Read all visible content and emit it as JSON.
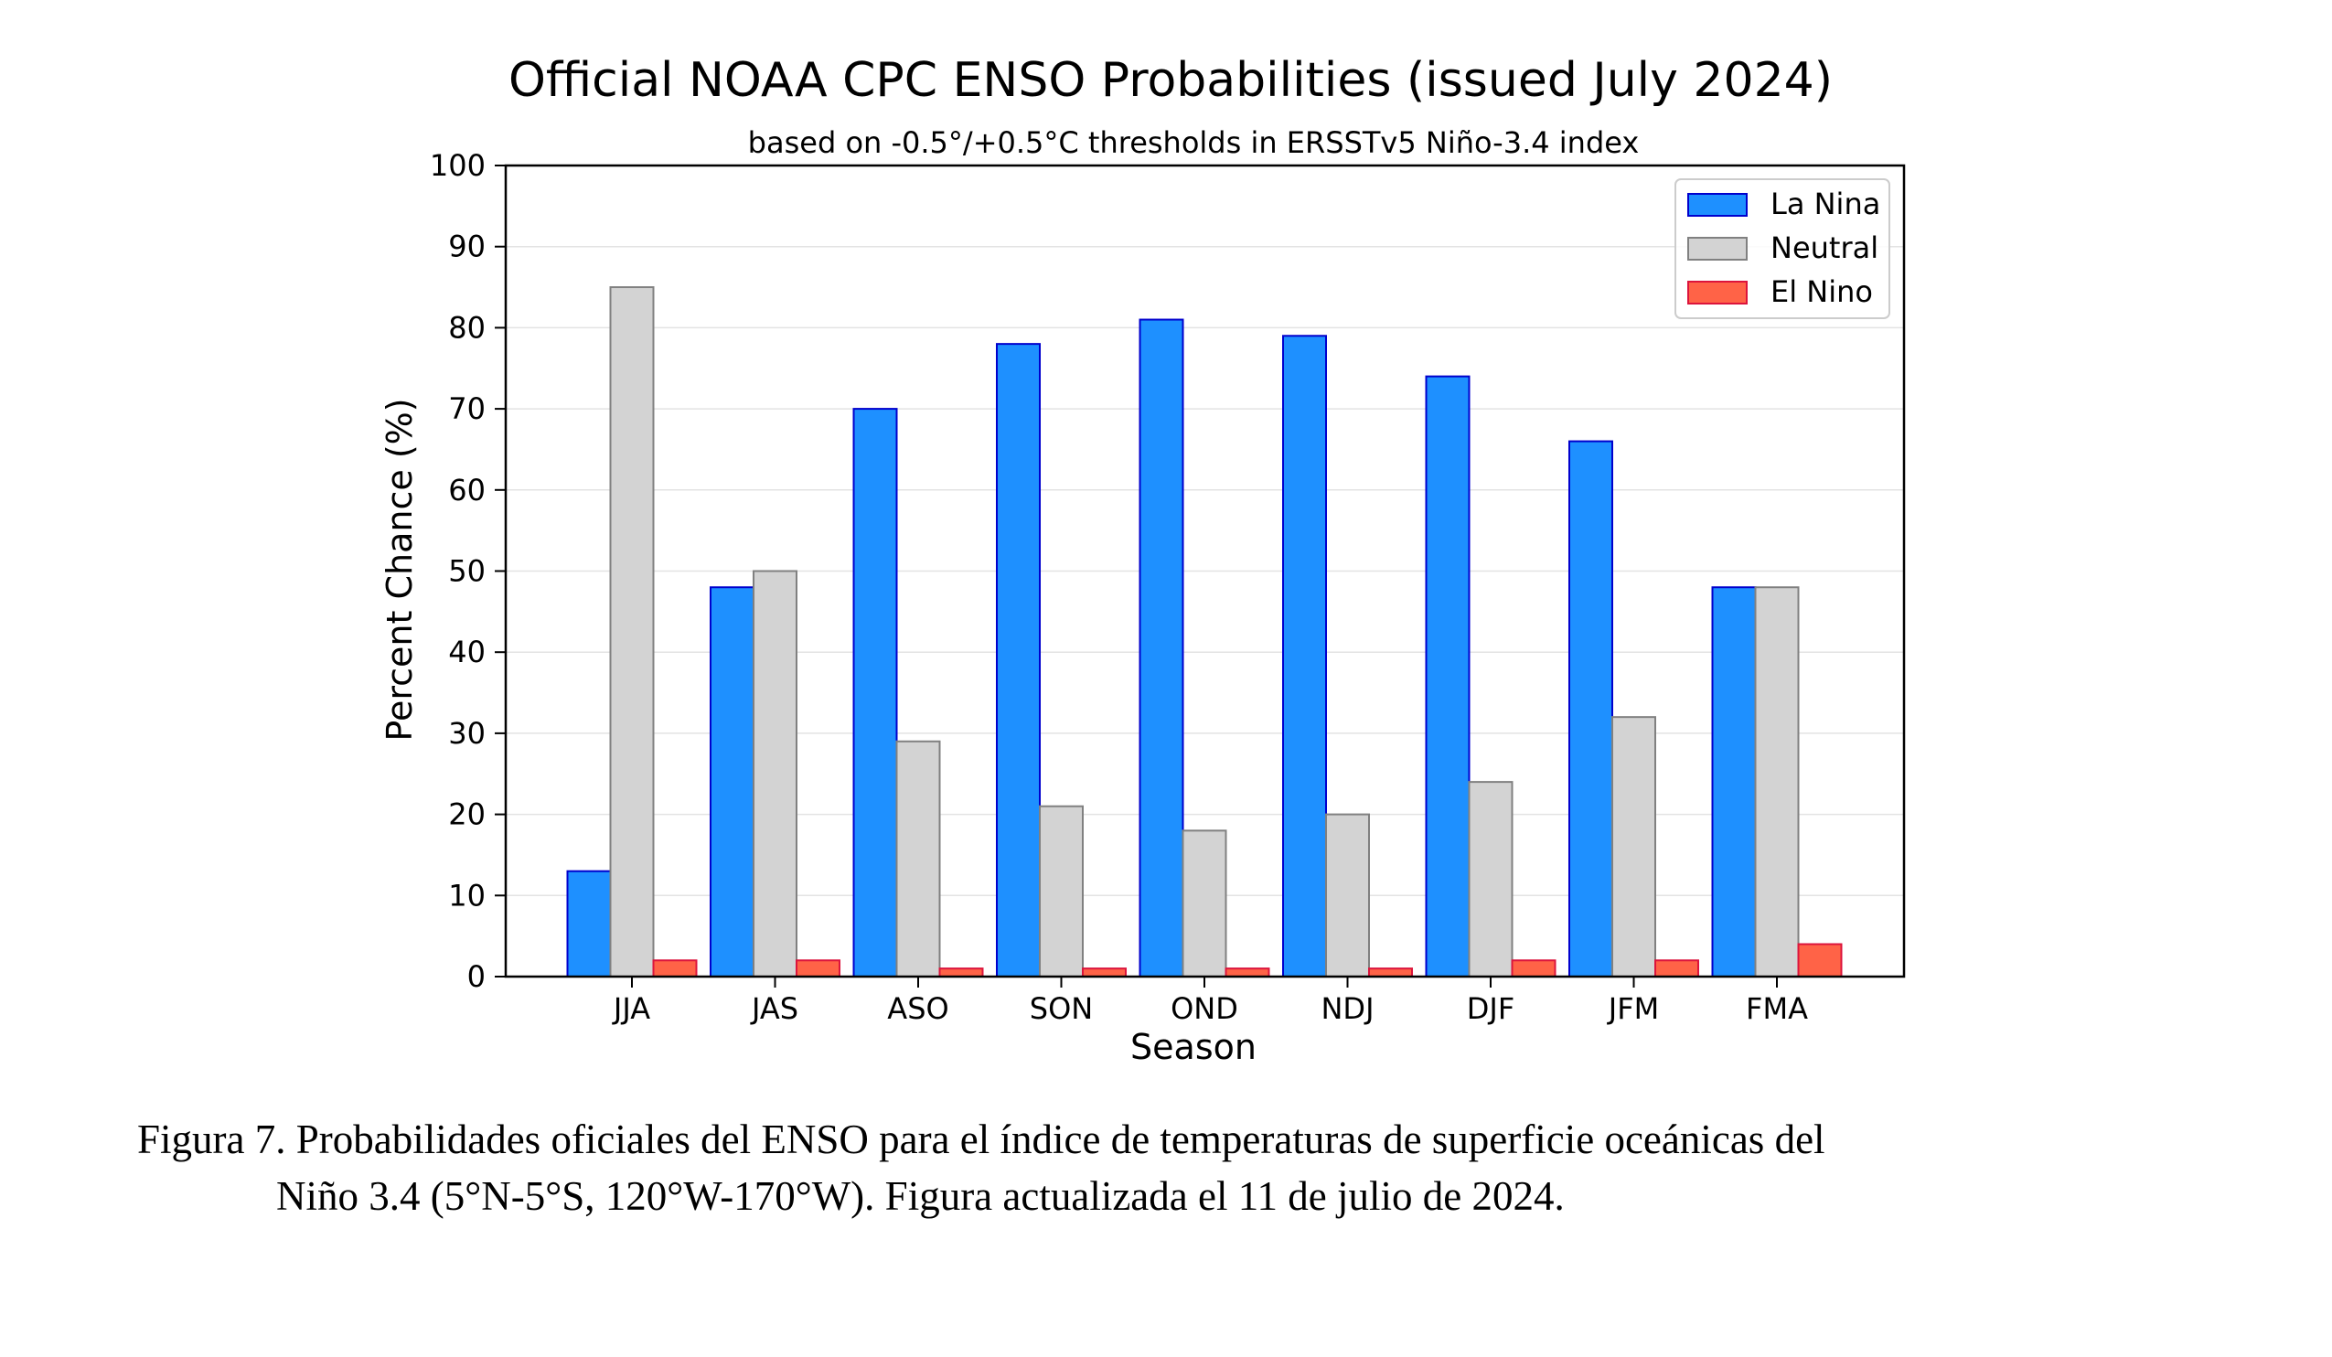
{
  "chart_data": {
    "type": "bar",
    "title": "Official NOAA CPC ENSO Probabilities (issued July 2024)",
    "subtitle": "based on -0.5°/+0.5°C thresholds in ERSSTv5 Niño-3.4 index",
    "xlabel": "Season",
    "ylabel": "Percent Chance (%)",
    "ylim": [
      0,
      100
    ],
    "yticks": [
      0,
      10,
      20,
      30,
      40,
      50,
      60,
      70,
      80,
      90,
      100
    ],
    "grid": "horizontal",
    "legend_position": "top-right",
    "categories": [
      "JJA",
      "JAS",
      "ASO",
      "SON",
      "OND",
      "NDJ",
      "DJF",
      "JFM",
      "FMA"
    ],
    "series": [
      {
        "name": "La Nina",
        "color": "#1e90ff",
        "edge": "#0000cd",
        "values": [
          13,
          48,
          70,
          78,
          81,
          79,
          74,
          66,
          48
        ]
      },
      {
        "name": "Neutral",
        "color": "#d3d3d3",
        "edge": "#808080",
        "values": [
          85,
          50,
          29,
          21,
          18,
          20,
          24,
          32,
          48
        ]
      },
      {
        "name": "El Nino",
        "color": "#ff6347",
        "edge": "#dc143c",
        "values": [
          2,
          2,
          1,
          1,
          1,
          1,
          2,
          2,
          4
        ]
      }
    ]
  },
  "caption": {
    "line1": "Figura 7. Probabilidades oficiales del ENSO para el índice de temperaturas de superficie oceánicas del",
    "line2": "Niño 3.4 (5°N-5°S, 120°W-170°W). Figura actualizada el 11 de julio de 2024."
  }
}
